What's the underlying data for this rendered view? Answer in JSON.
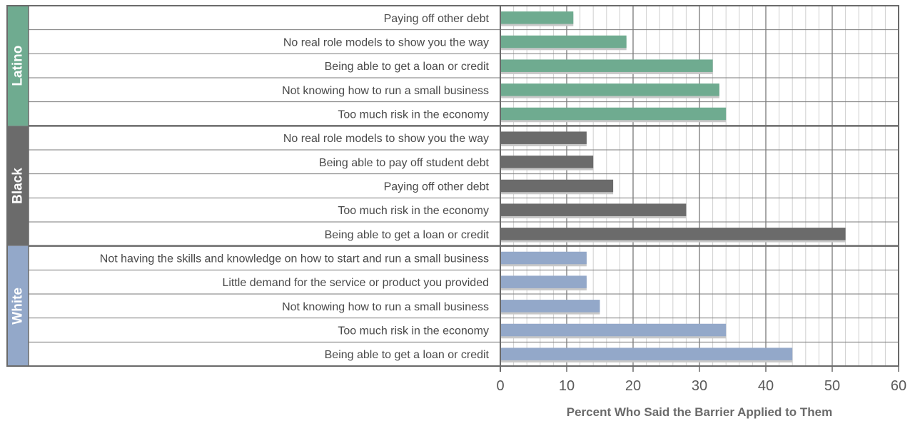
{
  "chart_data": {
    "type": "bar",
    "orientation": "horizontal",
    "xlabel": "Percent Who Said the Barrier Applied to Them",
    "xlim": [
      0,
      60
    ],
    "xticks": [
      0,
      10,
      20,
      30,
      40,
      50,
      60
    ],
    "grid": true,
    "groups": [
      {
        "name": "Latino",
        "color": "#6fab90",
        "categories": [
          "Paying off other debt",
          "No real role models to show you the way",
          "Being able to get a loan or credit",
          "Not knowing how to run a small business",
          "Too much risk in the economy"
        ],
        "values": [
          11,
          19,
          32,
          33,
          34
        ]
      },
      {
        "name": "Black",
        "color": "#6b6b6b",
        "categories": [
          "No real role models to show you the way",
          "Being able to pay off student debt",
          "Paying off other debt",
          "Too much risk in the economy",
          "Being able to get a loan or credit"
        ],
        "values": [
          13,
          14,
          17,
          28,
          52
        ]
      },
      {
        "name": "White",
        "color": "#93a8c9",
        "categories": [
          "Not having the skills and knowledge on how to start and run a small business",
          "Little demand for the service or product you provided",
          "Not knowing how to run a small business",
          "Too much risk in the economy",
          "Being able to get a loan or credit"
        ],
        "values": [
          13,
          13,
          15,
          34,
          44
        ]
      }
    ]
  }
}
